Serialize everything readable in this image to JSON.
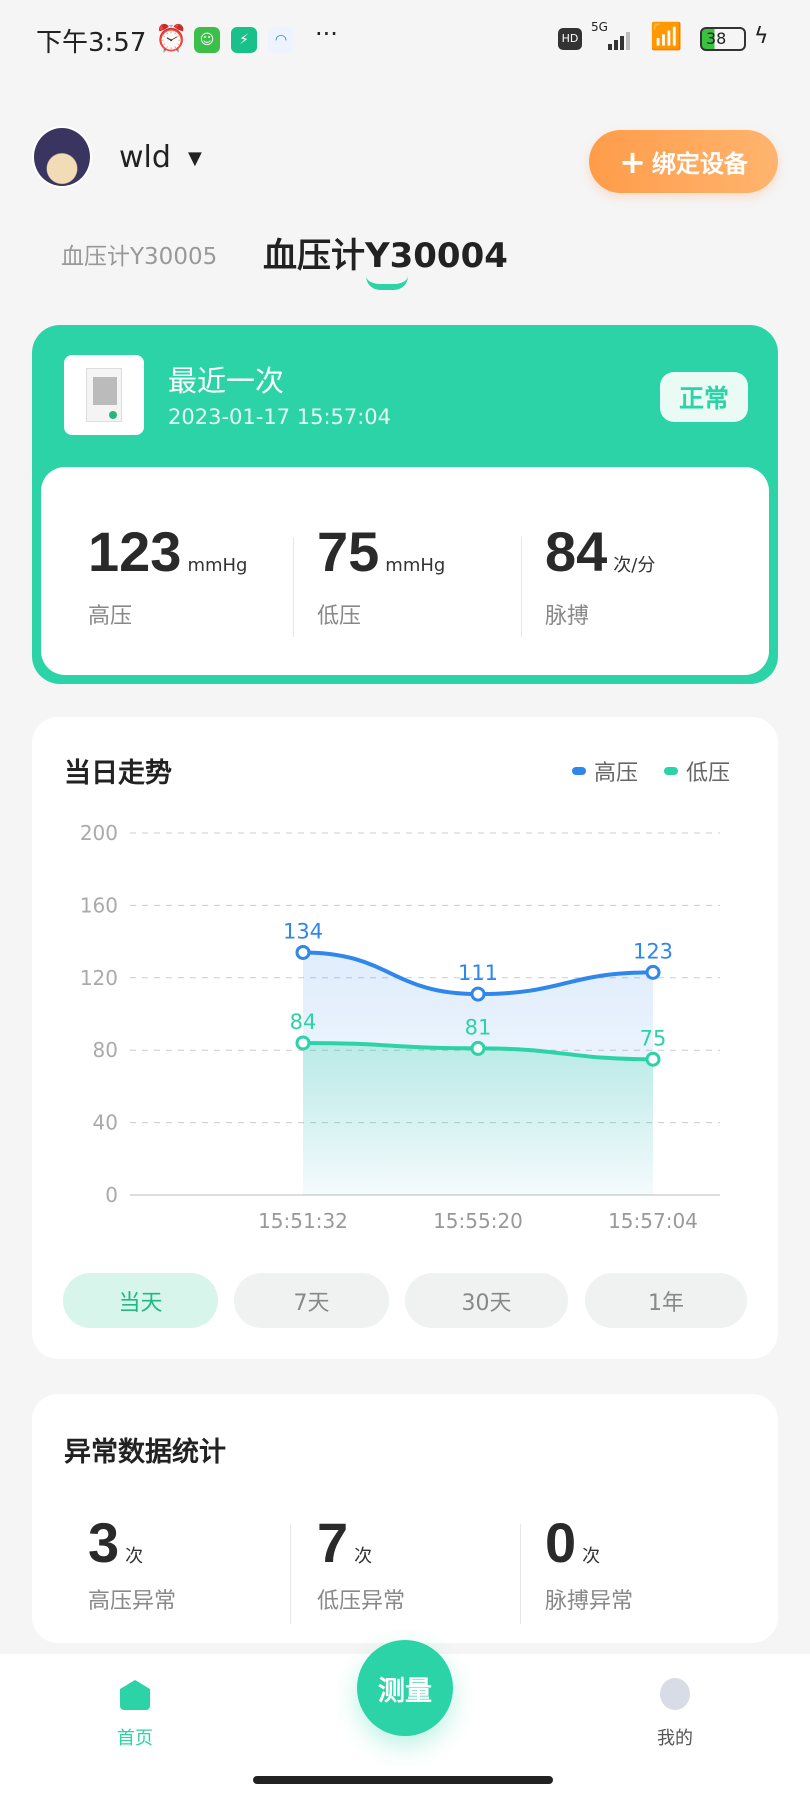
{
  "status_bar": {
    "time": "下午3:57",
    "network": "5G",
    "battery": "38",
    "icons": [
      "alarm-icon",
      "app-green-icon",
      "shield-icon",
      "browser-icon",
      "more-icon",
      "hd-icon",
      "signal-icon",
      "wifi-icon",
      "battery-icon",
      "charging-icon"
    ]
  },
  "header": {
    "username": "wld",
    "bind_button": "绑定设备",
    "bind_color": "#ff9a4c"
  },
  "device_tabs": [
    {
      "label": "血压计Y30005",
      "active": false
    },
    {
      "label": "血压计Y30004",
      "active": true
    }
  ],
  "latest": {
    "title": "最近一次",
    "datetime": "2023-01-17 15:57:04",
    "status": "正常",
    "accent": "#2bd3a6",
    "stats": [
      {
        "value": "123",
        "unit": "mmHg",
        "label": "高压"
      },
      {
        "value": "75",
        "unit": "mmHg",
        "label": "低压"
      },
      {
        "value": "84",
        "unit": "次/分",
        "label": "脉搏"
      }
    ]
  },
  "trend": {
    "title": "当日走势",
    "ranges": [
      {
        "label": "当天",
        "active": true
      },
      {
        "label": "7天"
      },
      {
        "label": "30天"
      },
      {
        "label": "1年"
      }
    ]
  },
  "chart_data": {
    "type": "line",
    "categories": [
      "15:51:32",
      "15:55:20",
      "15:57:04"
    ],
    "ylim": [
      0,
      200
    ],
    "yticks": [
      0,
      40,
      80,
      120,
      160,
      200
    ],
    "grid": true,
    "legend": "top-right",
    "series": [
      {
        "name": "高压",
        "values": [
          134,
          111,
          123
        ],
        "color": "#2f86eb"
      },
      {
        "name": "低压",
        "values": [
          84,
          81,
          75
        ],
        "color": "#2bd3a6"
      }
    ]
  },
  "abnormal": {
    "title": "异常数据统计",
    "stats": [
      {
        "value": "3",
        "unit": "次",
        "label": "高压异常"
      },
      {
        "value": "7",
        "unit": "次",
        "label": "低压异常"
      },
      {
        "value": "0",
        "unit": "次",
        "label": "脉搏异常"
      }
    ]
  },
  "nav": {
    "home": "首页",
    "measure": "测量",
    "mine": "我的"
  }
}
